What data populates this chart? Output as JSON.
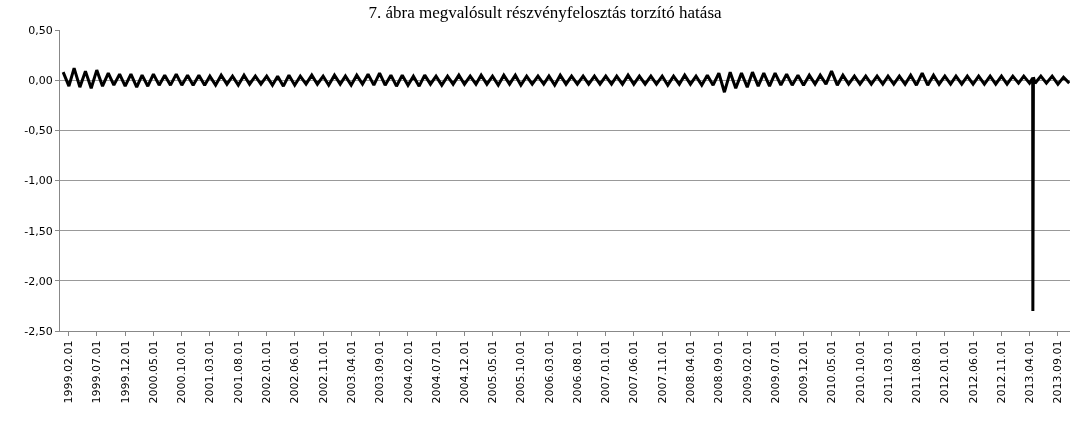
{
  "chart_data": {
    "type": "line",
    "title": "7. ábra megvalósult részvényfelosztás torzító hatása",
    "x": [
      "1999-01",
      "1999-02",
      "1999-03",
      "1999-04",
      "1999-05",
      "1999-06",
      "1999-07",
      "1999-08",
      "1999-09",
      "1999-10",
      "1999-11",
      "1999-12",
      "2000-01",
      "2000-02",
      "2000-03",
      "2000-04",
      "2000-05",
      "2000-06",
      "2000-07",
      "2000-08",
      "2000-09",
      "2000-10",
      "2000-11",
      "2000-12",
      "2001-01",
      "2001-02",
      "2001-03",
      "2001-04",
      "2001-05",
      "2001-06",
      "2001-07",
      "2001-08",
      "2001-09",
      "2001-10",
      "2001-11",
      "2001-12",
      "2002-01",
      "2002-02",
      "2002-03",
      "2002-04",
      "2002-05",
      "2002-06",
      "2002-07",
      "2002-08",
      "2002-09",
      "2002-10",
      "2002-11",
      "2002-12",
      "2003-01",
      "2003-02",
      "2003-03",
      "2003-04",
      "2003-05",
      "2003-06",
      "2003-07",
      "2003-08",
      "2003-09",
      "2003-10",
      "2003-11",
      "2003-12",
      "2004-01",
      "2004-02",
      "2004-03",
      "2004-04",
      "2004-05",
      "2004-06",
      "2004-07",
      "2004-08",
      "2004-09",
      "2004-10",
      "2004-11",
      "2004-12",
      "2005-01",
      "2005-02",
      "2005-03",
      "2005-04",
      "2005-05",
      "2005-06",
      "2005-07",
      "2005-08",
      "2005-09",
      "2005-10",
      "2005-11",
      "2005-12",
      "2006-01",
      "2006-02",
      "2006-03",
      "2006-04",
      "2006-05",
      "2006-06",
      "2006-07",
      "2006-08",
      "2006-09",
      "2006-10",
      "2006-11",
      "2006-12",
      "2007-01",
      "2007-02",
      "2007-03",
      "2007-04",
      "2007-05",
      "2007-06",
      "2007-07",
      "2007-08",
      "2007-09",
      "2007-10",
      "2007-11",
      "2007-12",
      "2008-01",
      "2008-02",
      "2008-03",
      "2008-04",
      "2008-05",
      "2008-06",
      "2008-07",
      "2008-08",
      "2008-09",
      "2008-10",
      "2008-11",
      "2008-12",
      "2009-01",
      "2009-02",
      "2009-03",
      "2009-04",
      "2009-05",
      "2009-06",
      "2009-07",
      "2009-08",
      "2009-09",
      "2009-10",
      "2009-11",
      "2009-12",
      "2010-01",
      "2010-02",
      "2010-03",
      "2010-04",
      "2010-05",
      "2010-06",
      "2010-07",
      "2010-08",
      "2010-09",
      "2010-10",
      "2010-11",
      "2010-12",
      "2011-01",
      "2011-02",
      "2011-03",
      "2011-04",
      "2011-05",
      "2011-06",
      "2011-07",
      "2011-08",
      "2011-09",
      "2011-10",
      "2011-11",
      "2011-12",
      "2012-01",
      "2012-02",
      "2012-03",
      "2012-04",
      "2012-05",
      "2012-06",
      "2012-07",
      "2012-08",
      "2012-09",
      "2012-10",
      "2012-11",
      "2012-12",
      "2013-01",
      "2013-02",
      "2013-03",
      "2013-04",
      "2013-04-18",
      "2013-04-19",
      "2013-04-22",
      "2013-05",
      "2013-06",
      "2013-07",
      "2013-08",
      "2013-09",
      "2013-10",
      "2013-11"
    ],
    "series": [
      {
        "color": "#000000",
        "values": [
          0.08,
          -0.06,
          0.12,
          -0.07,
          0.09,
          -0.08,
          0.1,
          -0.06,
          0.07,
          -0.05,
          0.06,
          -0.06,
          0.06,
          -0.07,
          0.05,
          -0.06,
          0.06,
          -0.05,
          0.05,
          -0.05,
          0.06,
          -0.05,
          0.05,
          -0.05,
          0.05,
          -0.05,
          0.04,
          -0.05,
          0.05,
          -0.04,
          0.04,
          -0.05,
          0.05,
          -0.04,
          0.04,
          -0.04,
          0.04,
          -0.05,
          0.04,
          -0.06,
          0.05,
          -0.05,
          0.04,
          -0.04,
          0.05,
          -0.04,
          0.04,
          -0.05,
          0.05,
          -0.04,
          0.04,
          -0.05,
          0.05,
          -0.04,
          0.06,
          -0.05,
          0.07,
          -0.05,
          0.05,
          -0.06,
          0.05,
          -0.05,
          0.04,
          -0.06,
          0.05,
          -0.04,
          0.04,
          -0.05,
          0.04,
          -0.04,
          0.05,
          -0.04,
          0.04,
          -0.04,
          0.05,
          -0.04,
          0.04,
          -0.05,
          0.05,
          -0.04,
          0.05,
          -0.05,
          0.04,
          -0.04,
          0.04,
          -0.04,
          0.04,
          -0.05,
          0.05,
          -0.04,
          0.04,
          -0.04,
          0.04,
          -0.04,
          0.04,
          -0.04,
          0.04,
          -0.04,
          0.04,
          -0.04,
          0.05,
          -0.04,
          0.04,
          -0.04,
          0.04,
          -0.04,
          0.04,
          -0.05,
          0.04,
          -0.04,
          0.05,
          -0.04,
          0.04,
          -0.05,
          0.05,
          -0.05,
          0.07,
          -0.12,
          0.08,
          -0.08,
          0.07,
          -0.07,
          0.08,
          -0.06,
          0.07,
          -0.06,
          0.07,
          -0.05,
          0.06,
          -0.05,
          0.05,
          -0.05,
          0.05,
          -0.04,
          0.05,
          -0.04,
          0.09,
          -0.05,
          0.05,
          -0.04,
          0.04,
          -0.04,
          0.04,
          -0.04,
          0.04,
          -0.04,
          0.04,
          -0.04,
          0.04,
          -0.04,
          0.05,
          -0.05,
          0.07,
          -0.05,
          0.05,
          -0.04,
          0.04,
          -0.04,
          0.04,
          -0.04,
          0.04,
          -0.04,
          0.04,
          -0.04,
          0.04,
          -0.04,
          0.04,
          -0.04,
          0.04,
          -0.03,
          0.04,
          -0.03,
          0.02,
          -2.3,
          0.03,
          -0.03,
          0.04,
          -0.03,
          0.04,
          -0.04,
          0.03,
          -0.03
        ]
      }
    ],
    "xlim": [
      "1998-12-15",
      "2013-11-05"
    ],
    "xticks": [
      {
        "value": "1999-02-01",
        "label": "1999.02.01"
      },
      {
        "value": "1999-07-01",
        "label": "1999.07.01"
      },
      {
        "value": "1999-12-01",
        "label": "1999.12.01"
      },
      {
        "value": "2000-05-01",
        "label": "2000.05.01"
      },
      {
        "value": "2000-10-01",
        "label": "2000.10.01"
      },
      {
        "value": "2001-03-01",
        "label": "2001.03.01"
      },
      {
        "value": "2001-08-01",
        "label": "2001.08.01"
      },
      {
        "value": "2002-01-01",
        "label": "2002.01.01"
      },
      {
        "value": "2002-06-01",
        "label": "2002.06.01"
      },
      {
        "value": "2002-11-01",
        "label": "2002.11.01"
      },
      {
        "value": "2003-04-01",
        "label": "2003.04.01"
      },
      {
        "value": "2003-09-01",
        "label": "2003.09.01"
      },
      {
        "value": "2004-02-01",
        "label": "2004.02.01"
      },
      {
        "value": "2004-07-01",
        "label": "2004.07.01"
      },
      {
        "value": "2004-12-01",
        "label": "2004.12.01"
      },
      {
        "value": "2005-05-01",
        "label": "2005.05.01"
      },
      {
        "value": "2005-10-01",
        "label": "2005.10.01"
      },
      {
        "value": "2006-03-01",
        "label": "2006.03.01"
      },
      {
        "value": "2006-08-01",
        "label": "2006.08.01"
      },
      {
        "value": "2007-01-01",
        "label": "2007.01.01"
      },
      {
        "value": "2007-06-01",
        "label": "2007.06.01"
      },
      {
        "value": "2007-11-01",
        "label": "2007.11.01"
      },
      {
        "value": "2008-04-01",
        "label": "2008.04.01"
      },
      {
        "value": "2008-09-01",
        "label": "2008.09.01"
      },
      {
        "value": "2009-02-01",
        "label": "2009.02.01"
      },
      {
        "value": "2009-07-01",
        "label": "2009.07.01"
      },
      {
        "value": "2009-12-01",
        "label": "2009.12.01"
      },
      {
        "value": "2010-05-01",
        "label": "2010.05.01"
      },
      {
        "value": "2010-10-01",
        "label": "2010.10.01"
      },
      {
        "value": "2011-03-01",
        "label": "2011.03.01"
      },
      {
        "value": "2011-08-01",
        "label": "2011.08.01"
      },
      {
        "value": "2012-01-01",
        "label": "2012.01.01"
      },
      {
        "value": "2012-06-01",
        "label": "2012.06.01"
      },
      {
        "value": "2012-11-01",
        "label": "2012.11.01"
      },
      {
        "value": "2013-04-01",
        "label": "2013.04.01"
      },
      {
        "value": "2013-09-01",
        "label": "2013.09.01"
      }
    ],
    "ylim": [
      -2.5,
      0.5
    ],
    "yticks": [
      {
        "value": 0.5,
        "label": "0,50"
      },
      {
        "value": 0,
        "label": "0,00"
      },
      {
        "value": -0.5,
        "label": "-0,50"
      },
      {
        "value": -1,
        "label": "-1,00"
      },
      {
        "value": -1.5,
        "label": "-1,50"
      },
      {
        "value": -2,
        "label": "-2,00"
      },
      {
        "value": -2.5,
        "label": "-2,50"
      }
    ],
    "grid": "y",
    "marker": "none",
    "line_style": "solid"
  }
}
